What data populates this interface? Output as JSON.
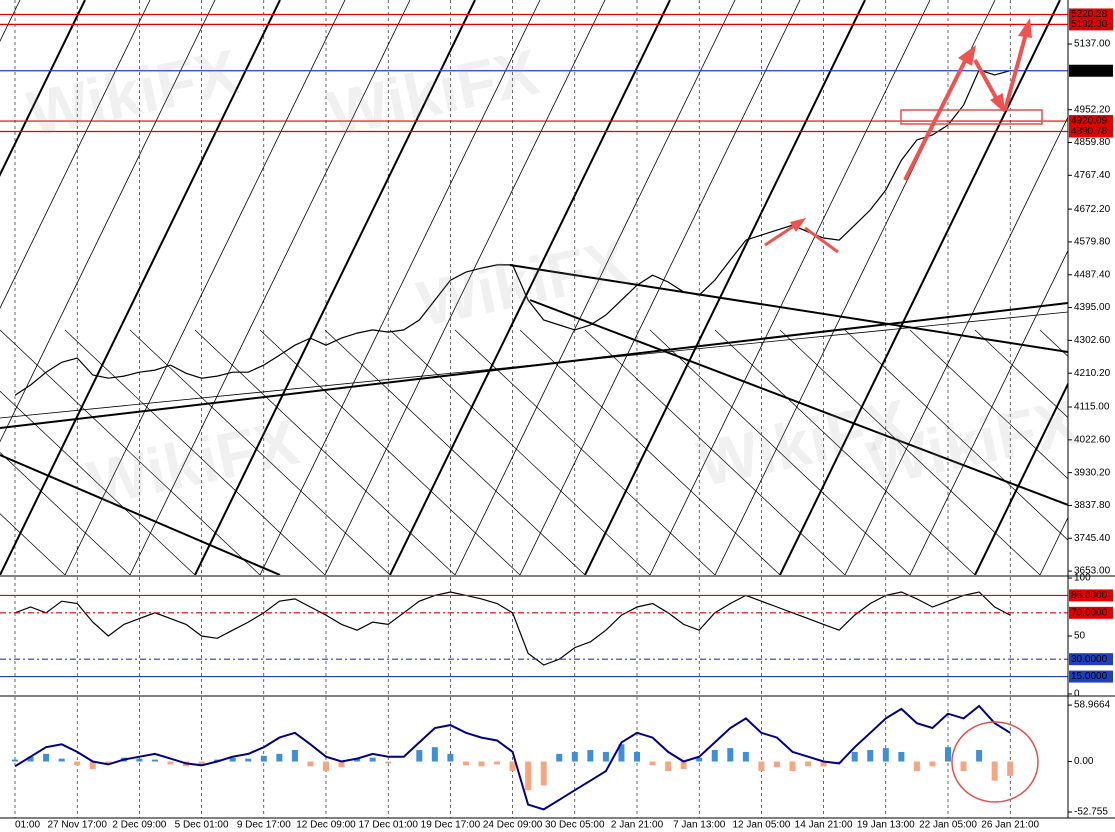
{
  "chart_data": [
    {
      "type": "line",
      "watermark": "WikiFX",
      "grid": true,
      "categories": [
        "01:00",
        null,
        null,
        null,
        "27 Nov 17:00",
        null,
        null,
        null,
        "2 Dec 09:00",
        null,
        null,
        null,
        "5 Dec 01:00",
        null,
        null,
        null,
        "9 Dec 17:00",
        null,
        null,
        null,
        "12 Dec 09:00",
        null,
        null,
        null,
        "17 Dec 01:00",
        null,
        null,
        null,
        "19 Dec 17:00",
        null,
        null,
        null,
        "24 Dec 09:00",
        null,
        null,
        null,
        "30 Dec 05:00",
        null,
        null,
        null,
        "2 Jan 21:00",
        null,
        null,
        null,
        "7 Jan 13:00",
        null,
        null,
        null,
        "12 Jan 05:00",
        null,
        null,
        null,
        "14 Jan 21:00",
        null,
        null,
        null,
        "19 Jan 13:00",
        null,
        null,
        null,
        "22 Jan 05:00",
        null,
        null,
        null,
        "26 Jan 21:00"
      ],
      "series": [
        {
          "color": "#000000",
          "values": [
            4148,
            4177,
            4213,
            4241,
            4253,
            4205,
            4196,
            4202,
            4213,
            4219,
            4233,
            4210,
            4196,
            4202,
            4213,
            4213,
            4233,
            4261,
            4289,
            4309,
            4289,
            4309,
            4323,
            4332,
            4326,
            4332,
            4360,
            4416,
            4472,
            4495,
            4506,
            4515,
            4515,
            4416,
            4360,
            4346,
            4332,
            4346,
            4374,
            4416,
            4458,
            4486,
            4467,
            4439,
            4430,
            4472,
            4529,
            4585,
            4599,
            4613,
            4627,
            4608,
            4591,
            4585,
            4627,
            4670,
            4726,
            4810,
            4867,
            4881,
            4909,
            4965,
            5064,
            5050,
            5062
          ]
        }
      ],
      "ylim": [
        3642,
        5261
      ],
      "yticks": [
        {
          "value": 5137,
          "label": "5137.00"
        },
        {
          "value": 4952.2,
          "label": "4952.20"
        },
        {
          "value": 4859.8,
          "label": "4859.80"
        },
        {
          "value": 4767.4,
          "label": "4767.40"
        },
        {
          "value": 4672.2,
          "label": "4672.20"
        },
        {
          "value": 4579.8,
          "label": "4579.80"
        },
        {
          "value": 4487.4,
          "label": "4487.40"
        },
        {
          "value": 4395,
          "label": "4395.00"
        },
        {
          "value": 4302.6,
          "label": "4302.60"
        },
        {
          "value": 4210.2,
          "label": "4210.20"
        },
        {
          "value": 4115,
          "label": "4115.00"
        },
        {
          "value": 4022.6,
          "label": "4022.60"
        },
        {
          "value": 3930.2,
          "label": "3930.20"
        },
        {
          "value": 3837.8,
          "label": "3837.80"
        },
        {
          "value": 3745.4,
          "label": "3745.40"
        },
        {
          "value": 3653,
          "label": "3653.00"
        }
      ],
      "levels": [
        5220.28,
        {
          "value": 5192.3,
          "label": "5192.30"
        },
        5061.82,
        4920.09,
        4890.78
      ],
      "level_colors": [
        "#e00000",
        "#e00000",
        "#1f3fbf",
        "#e00000",
        "#e00000"
      ],
      "level_label_colors": [
        "#e00000",
        "#e00000",
        "#000000",
        "#e00000",
        "#e00000"
      ]
    },
    {
      "type": "line",
      "grid": true,
      "series": [
        {
          "color": "#000000",
          "values": [
            70,
            75,
            70,
            80,
            78,
            62,
            50,
            60,
            65,
            70,
            65,
            60,
            50,
            48,
            55,
            62,
            70,
            80,
            82,
            75,
            68,
            60,
            55,
            62,
            60,
            70,
            80,
            85,
            88,
            85,
            82,
            78,
            70,
            35,
            25,
            30,
            40,
            45,
            55,
            68,
            75,
            78,
            70,
            60,
            55,
            70,
            78,
            85,
            80,
            75,
            70,
            65,
            60,
            55,
            68,
            78,
            85,
            88,
            82,
            75,
            80,
            85,
            88,
            75,
            68
          ]
        }
      ],
      "ylim": [
        -0.9,
        100.9
      ],
      "yticks": [
        100,
        50,
        0
      ],
      "levels": [
        {
          "value": 85,
          "label": "85.0000"
        },
        {
          "value": 70,
          "label": "70.0000"
        },
        {
          "value": 30,
          "label": "30.0000"
        },
        {
          "value": 15,
          "label": "15.0000"
        }
      ],
      "level_colors": [
        "#e00000",
        "#e00000",
        "#1f3fbf",
        "#1f3fbf"
      ],
      "level_label_colors": [
        "#e00000",
        "#e00000",
        "#1f3fbf",
        "#1f3fbf"
      ]
    },
    {
      "type": "combo",
      "grid": true,
      "series": [
        {
          "type": "bar",
          "color": "#3d8fd6",
          "negative_color": "#f4a582",
          "values": [
            2,
            5,
            8,
            3,
            -4,
            -8,
            -3,
            4,
            3,
            2,
            -3,
            -5,
            -4,
            2,
            4,
            3,
            6,
            8,
            12,
            -5,
            -10,
            -6,
            3,
            4,
            -2,
            0,
            12,
            15,
            8,
            -4,
            -5,
            -3,
            -10,
            -30,
            -25,
            8,
            10,
            12,
            10,
            18,
            10,
            -4,
            -10,
            -8,
            4,
            12,
            14,
            10,
            -10,
            -6,
            -10,
            -5,
            -5,
            -2,
            10,
            12,
            14,
            10,
            -10,
            -5,
            15,
            -10,
            12,
            -20,
            -15
          ]
        },
        {
          "type": "line",
          "color": "#000080",
          "values": [
            -5,
            5,
            15,
            18,
            10,
            0,
            -3,
            2,
            5,
            8,
            3,
            -2,
            -4,
            0,
            5,
            8,
            15,
            25,
            30,
            18,
            5,
            0,
            3,
            8,
            5,
            5,
            20,
            35,
            38,
            30,
            25,
            22,
            10,
            -45,
            -50,
            -40,
            -30,
            -20,
            -10,
            20,
            30,
            25,
            10,
            0,
            5,
            20,
            35,
            45,
            30,
            25,
            10,
            5,
            0,
            -2,
            15,
            30,
            45,
            55,
            40,
            35,
            50,
            45,
            58,
            40,
            30
          ]
        }
      ],
      "ylim": [
        -59,
        67.4
      ],
      "yticks": [
        58.9664,
        {
          "value": 0,
          "label": "0.00"
        },
        -52.755
      ]
    }
  ]
}
